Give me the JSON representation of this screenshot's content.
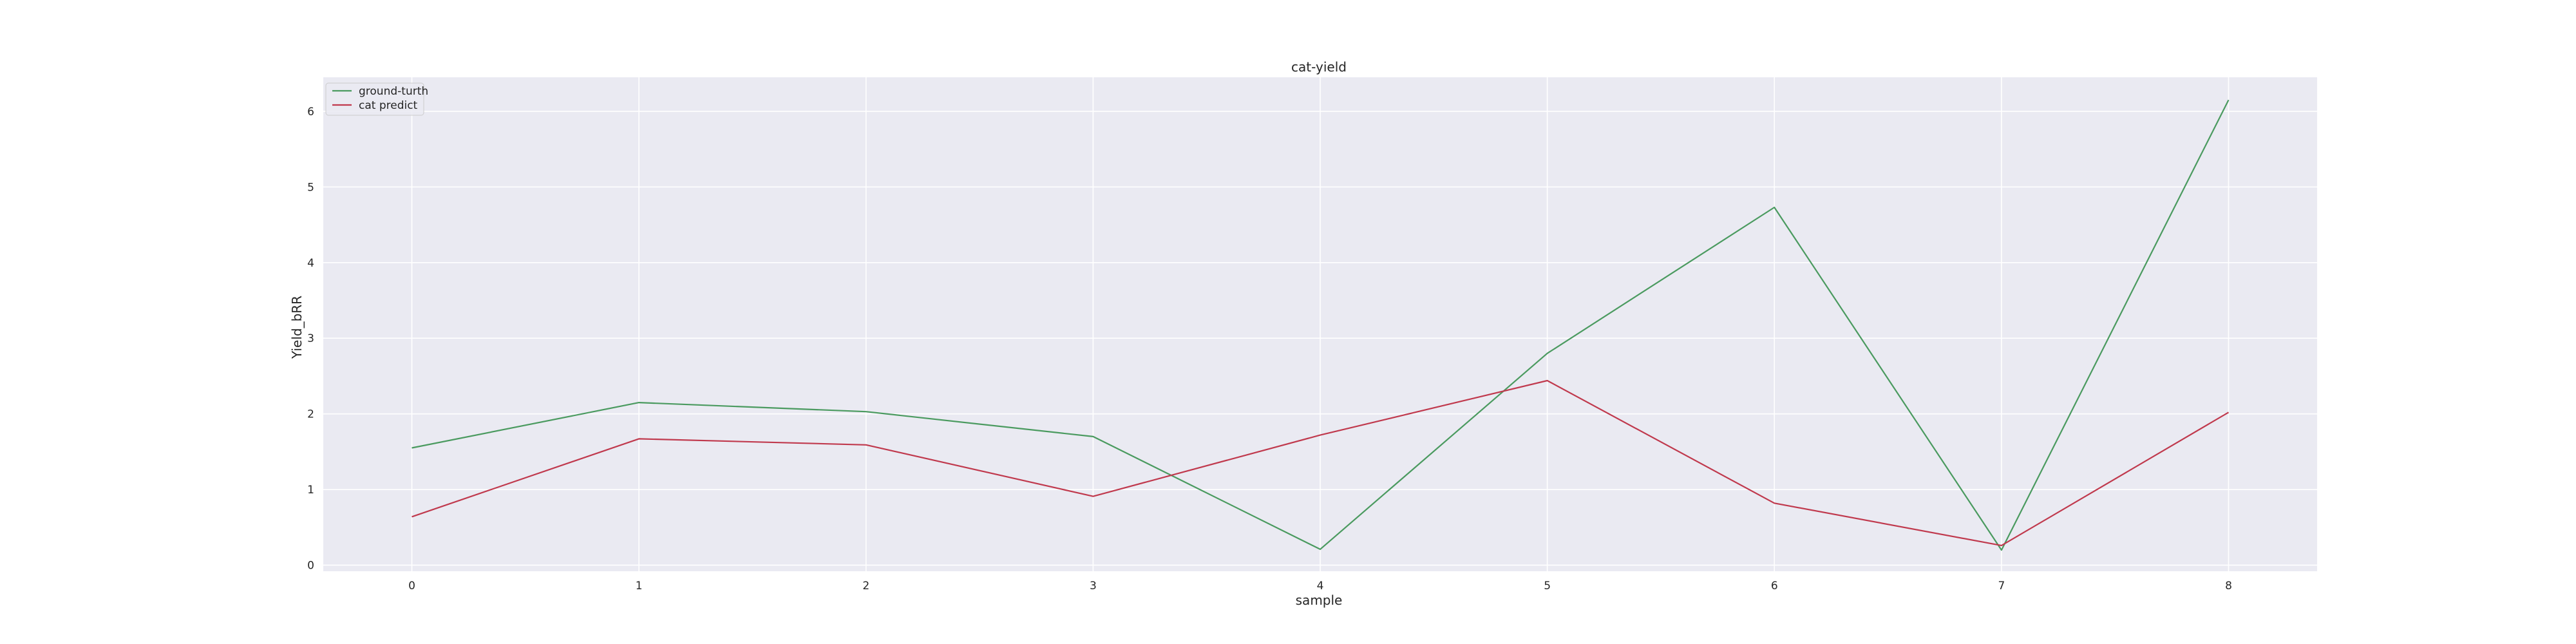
{
  "chart_data": {
    "type": "line",
    "title": "cat-yield",
    "xlabel": "sample",
    "ylabel": "Yield_bRR",
    "x": [
      0,
      1,
      2,
      3,
      4,
      5,
      6,
      7,
      8
    ],
    "xticks": [
      "0",
      "1",
      "2",
      "3",
      "4",
      "5",
      "6",
      "7",
      "8"
    ],
    "yticks": [
      "0",
      "1",
      "2",
      "3",
      "4",
      "5",
      "6"
    ],
    "xlim": [
      -0.39,
      8.39
    ],
    "ylim": [
      -0.08,
      6.45
    ],
    "grid": true,
    "legend_position": "top-left",
    "background_color": "#eaeaf2",
    "grid_color": "#ffffff",
    "series": [
      {
        "name": "ground-turth",
        "color": "#4a9a5f",
        "values": [
          1.55,
          2.15,
          2.03,
          1.7,
          0.21,
          2.8,
          4.73,
          0.2,
          6.15
        ]
      },
      {
        "name": "cat predict",
        "color": "#c0394d",
        "values": [
          0.64,
          1.67,
          1.59,
          0.91,
          1.72,
          2.44,
          0.82,
          0.26,
          2.02
        ]
      }
    ]
  }
}
